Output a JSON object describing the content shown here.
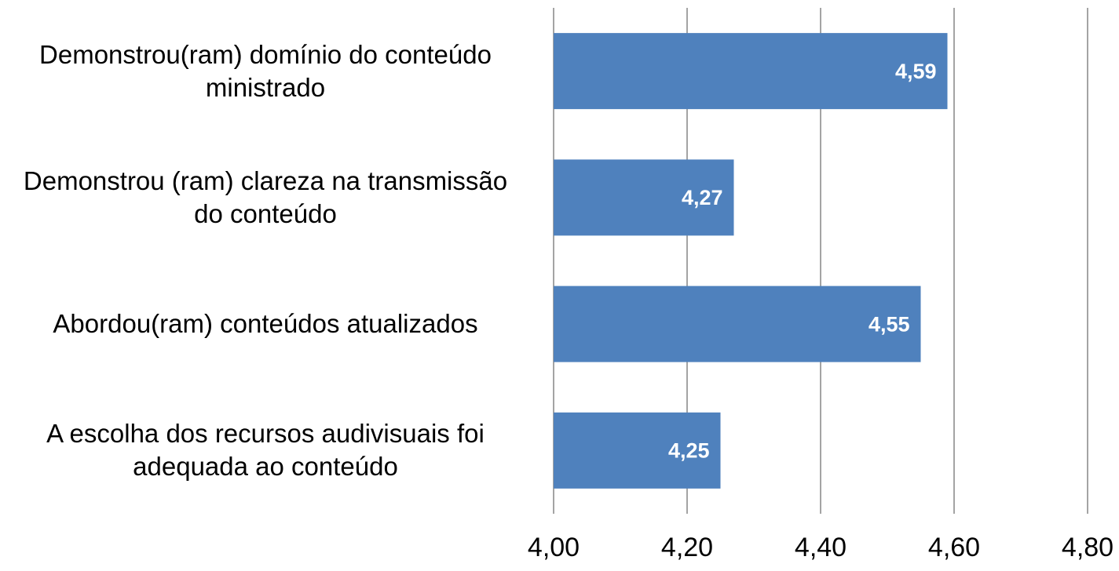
{
  "chart_data": {
    "type": "bar",
    "orientation": "horizontal",
    "categories": [
      "Demonstrou(ram) domínio do conteúdo ministrado",
      "Demonstrou (ram) clareza na transmissão do conteúdo",
      "Abordou(ram) conteúdos atualizados",
      "A escolha dos recursos audivisuais foi adequada ao conteúdo"
    ],
    "values": [
      4.59,
      4.27,
      4.55,
      4.25
    ],
    "value_labels": [
      "4,59",
      "4,27",
      "4,55",
      "4,25"
    ],
    "color": "#4f81bd",
    "xlim": [
      4.0,
      4.8
    ],
    "xticks": [
      {
        "value": 4.0,
        "label": "4,00"
      },
      {
        "value": 4.2,
        "label": "4,20"
      },
      {
        "value": 4.4,
        "label": "4,40"
      },
      {
        "value": 4.6,
        "label": "4,60"
      },
      {
        "value": 4.8,
        "label": "4,80"
      }
    ],
    "grid": true
  }
}
